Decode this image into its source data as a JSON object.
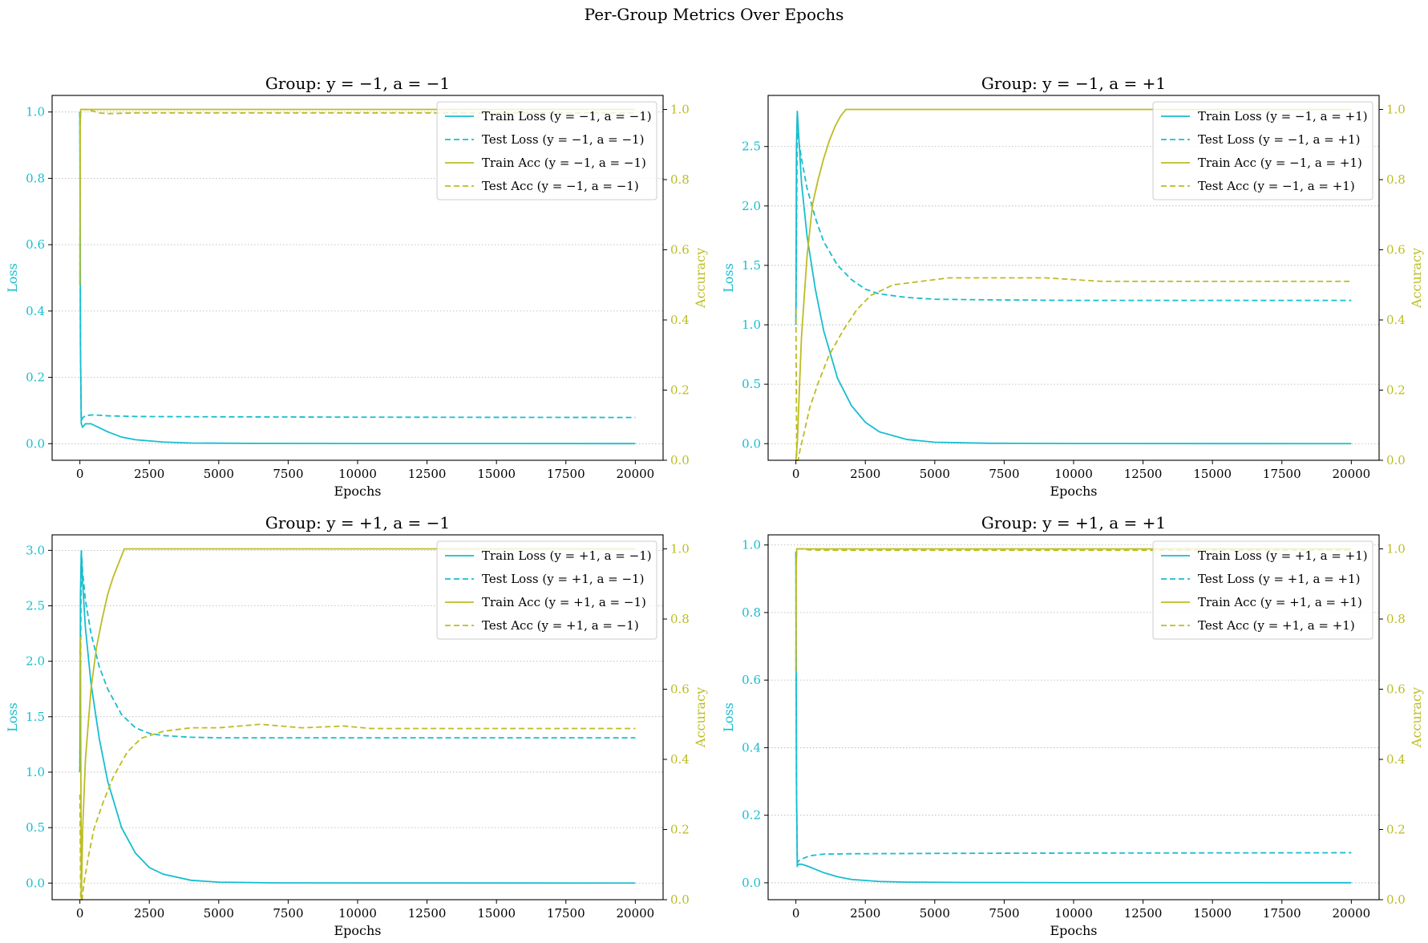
{
  "figure": {
    "title": "Per-Group Metrics Over Epochs"
  },
  "colors": {
    "loss": "#17becf",
    "acc": "#bcbd22",
    "grid": "#b0b0b0",
    "axis": "#000000"
  },
  "chart_data": [
    {
      "type": "line",
      "title": "Group: y = −1, a = −1",
      "xlabel": "Epochs",
      "ylabel_left": "Loss",
      "ylabel_right": "Accuracy",
      "xlim": [
        -1000,
        21000
      ],
      "ylim_left": [
        -0.05,
        1.05
      ],
      "ylim_right": [
        0,
        1.04
      ],
      "xticks": [
        0,
        2500,
        5000,
        7500,
        10000,
        12500,
        15000,
        17500,
        20000
      ],
      "yticks_left": [
        0.0,
        0.2,
        0.4,
        0.6,
        0.8,
        1.0
      ],
      "yticks_right": [
        0.0,
        0.2,
        0.4,
        0.6,
        0.8,
        1.0
      ],
      "grid": true,
      "legend_position": "top-right",
      "series": [
        {
          "name": "Train Loss (y = −1, a = −1)",
          "axis": "left",
          "style": "solid",
          "color": "#17becf",
          "x": [
            0,
            20,
            50,
            100,
            200,
            400,
            700,
            1000,
            1500,
            2000,
            3000,
            4000,
            6000,
            10000,
            20000
          ],
          "y": [
            1.0,
            0.3,
            0.06,
            0.05,
            0.06,
            0.06,
            0.048,
            0.036,
            0.02,
            0.012,
            0.005,
            0.002,
            0.001,
            0.0005,
            0.0003
          ]
        },
        {
          "name": "Test Loss (y = −1, a = −1)",
          "axis": "left",
          "style": "dashed",
          "color": "#17becf",
          "x": [
            0,
            20,
            50,
            100,
            200,
            500,
            1000,
            2000,
            5000,
            10000,
            20000
          ],
          "y": [
            1.0,
            0.3,
            0.07,
            0.078,
            0.085,
            0.087,
            0.084,
            0.082,
            0.081,
            0.08,
            0.079
          ]
        },
        {
          "name": "Train Acc (y = −1, a = −1)",
          "axis": "right",
          "style": "solid",
          "color": "#bcbd22",
          "x": [
            0,
            10,
            30,
            100,
            20000
          ],
          "y": [
            0.5,
            0.95,
            1.0,
            1.0,
            1.0
          ]
        },
        {
          "name": "Test Acc (y = −1, a = −1)",
          "axis": "right",
          "style": "dashed",
          "color": "#bcbd22",
          "x": [
            0,
            10,
            30,
            200,
            400,
            700,
            1000,
            2000,
            5000,
            20000
          ],
          "y": [
            0.5,
            0.95,
            1.0,
            1.0,
            0.997,
            0.99,
            0.988,
            0.99,
            0.99,
            0.99
          ]
        }
      ]
    },
    {
      "type": "line",
      "title": "Group: y = −1, a = +1",
      "xlabel": "Epochs",
      "ylabel_left": "Loss",
      "ylabel_right": "Accuracy",
      "xlim": [
        -1000,
        21000
      ],
      "ylim_left": [
        -0.14,
        2.93
      ],
      "ylim_right": [
        0,
        1.04
      ],
      "xticks": [
        0,
        2500,
        5000,
        7500,
        10000,
        12500,
        15000,
        17500,
        20000
      ],
      "yticks_left": [
        0.0,
        0.5,
        1.0,
        1.5,
        2.0,
        2.5
      ],
      "yticks_right": [
        0.0,
        0.2,
        0.4,
        0.6,
        0.8,
        1.0
      ],
      "grid": true,
      "legend_position": "top-right",
      "series": [
        {
          "name": "Train Loss (y = −1, a = +1)",
          "axis": "left",
          "style": "solid",
          "color": "#17becf",
          "x": [
            0,
            20,
            50,
            100,
            200,
            400,
            700,
            1000,
            1500,
            2000,
            2500,
            3000,
            4000,
            5000,
            7000,
            10000,
            20000
          ],
          "y": [
            1.0,
            2.5,
            2.8,
            2.6,
            2.2,
            1.75,
            1.3,
            0.95,
            0.55,
            0.32,
            0.18,
            0.1,
            0.035,
            0.012,
            0.003,
            0.001,
            0.0
          ]
        },
        {
          "name": "Test Loss (y = −1, a = +1)",
          "axis": "left",
          "style": "dashed",
          "color": "#17becf",
          "x": [
            0,
            50,
            100,
            200,
            400,
            700,
            1000,
            1500,
            2000,
            2500,
            3000,
            4000,
            5000,
            7000,
            10000,
            20000
          ],
          "y": [
            1.0,
            2.7,
            2.55,
            2.4,
            2.15,
            1.9,
            1.7,
            1.5,
            1.38,
            1.3,
            1.26,
            1.23,
            1.215,
            1.21,
            1.205,
            1.205
          ]
        },
        {
          "name": "Train Acc (y = −1, a = +1)",
          "axis": "right",
          "style": "solid",
          "color": "#bcbd22",
          "x": [
            0,
            50,
            100,
            200,
            400,
            600,
            800,
            1000,
            1200,
            1400,
            1600,
            1800,
            20000
          ],
          "y": [
            0.0,
            0.05,
            0.15,
            0.35,
            0.58,
            0.73,
            0.8,
            0.86,
            0.91,
            0.95,
            0.98,
            1.0,
            1.0
          ]
        },
        {
          "name": "Test Acc (y = −1, a = +1)",
          "axis": "right",
          "style": "dashed",
          "color": "#bcbd22",
          "x": [
            0,
            30,
            80,
            150,
            300,
            500,
            800,
            1200,
            1700,
            2200,
            2700,
            3500,
            4500,
            5500,
            7000,
            9000,
            11000,
            20000
          ],
          "y": [
            0.43,
            0.0,
            0.0,
            0.03,
            0.08,
            0.15,
            0.22,
            0.3,
            0.37,
            0.43,
            0.47,
            0.5,
            0.51,
            0.52,
            0.52,
            0.52,
            0.51,
            0.51
          ]
        }
      ]
    },
    {
      "type": "line",
      "title": "Group: y = +1, a = −1",
      "xlabel": "Epochs",
      "ylabel_left": "Loss",
      "ylabel_right": "Accuracy",
      "xlim": [
        -1000,
        21000
      ],
      "ylim_left": [
        -0.15,
        3.14
      ],
      "ylim_right": [
        0,
        1.04
      ],
      "xticks": [
        0,
        2500,
        5000,
        7500,
        10000,
        12500,
        15000,
        17500,
        20000
      ],
      "yticks_left": [
        0.0,
        0.5,
        1.0,
        1.5,
        2.0,
        2.5,
        3.0
      ],
      "yticks_right": [
        0.0,
        0.2,
        0.4,
        0.6,
        0.8,
        1.0
      ],
      "grid": true,
      "legend_position": "top-right",
      "series": [
        {
          "name": "Train Loss (y = +1, a = −1)",
          "axis": "left",
          "style": "solid",
          "color": "#17becf",
          "x": [
            0,
            20,
            50,
            100,
            200,
            400,
            700,
            1000,
            1500,
            2000,
            2500,
            3000,
            4000,
            5000,
            7000,
            10000,
            20000
          ],
          "y": [
            1.0,
            2.6,
            3.0,
            2.7,
            2.3,
            1.8,
            1.3,
            0.92,
            0.5,
            0.27,
            0.14,
            0.08,
            0.025,
            0.008,
            0.002,
            0.001,
            0.0
          ]
        },
        {
          "name": "Test Loss (y = +1, a = −1)",
          "axis": "left",
          "style": "dashed",
          "color": "#17becf",
          "x": [
            0,
            50,
            100,
            200,
            400,
            700,
            1000,
            1500,
            2000,
            2500,
            3000,
            4000,
            5000,
            7000,
            10000,
            20000
          ],
          "y": [
            1.0,
            3.0,
            2.8,
            2.55,
            2.25,
            1.95,
            1.75,
            1.52,
            1.4,
            1.35,
            1.33,
            1.315,
            1.31,
            1.31,
            1.31,
            1.31
          ]
        },
        {
          "name": "Train Acc (y = +1, a = −1)",
          "axis": "right",
          "style": "solid",
          "color": "#bcbd22",
          "x": [
            0,
            20,
            50,
            100,
            200,
            400,
            600,
            800,
            1000,
            1200,
            1400,
            1600,
            20000
          ],
          "y": [
            0.7,
            0.75,
            0.0,
            0.2,
            0.4,
            0.6,
            0.72,
            0.8,
            0.87,
            0.92,
            0.96,
            1.0,
            1.0
          ]
        },
        {
          "name": "Test Acc (y = +1, a = −1)",
          "axis": "right",
          "style": "dashed",
          "color": "#bcbd22",
          "x": [
            0,
            30,
            80,
            150,
            300,
            500,
            800,
            1200,
            1700,
            2200,
            3000,
            4000,
            5000,
            6500,
            8000,
            9500,
            10500,
            12000,
            20000
          ],
          "y": [
            0.3,
            0.0,
            0.0,
            0.05,
            0.12,
            0.2,
            0.27,
            0.35,
            0.42,
            0.46,
            0.48,
            0.49,
            0.49,
            0.5,
            0.49,
            0.495,
            0.488,
            0.488,
            0.488
          ]
        }
      ]
    },
    {
      "type": "line",
      "title": "Group: y = +1, a = +1",
      "xlabel": "Epochs",
      "ylabel_left": "Loss",
      "ylabel_right": "Accuracy",
      "xlim": [
        -1000,
        21000
      ],
      "ylim_left": [
        -0.05,
        1.03
      ],
      "ylim_right": [
        0,
        1.04
      ],
      "xticks": [
        0,
        2500,
        5000,
        7500,
        10000,
        12500,
        15000,
        17500,
        20000
      ],
      "yticks_left": [
        0.0,
        0.2,
        0.4,
        0.6,
        0.8,
        1.0
      ],
      "yticks_right": [
        0.0,
        0.2,
        0.4,
        0.6,
        0.8,
        1.0
      ],
      "grid": true,
      "legend_position": "top-right",
      "series": [
        {
          "name": "Train Loss (y = +1, a = +1)",
          "axis": "left",
          "style": "solid",
          "color": "#17becf",
          "x": [
            0,
            20,
            50,
            100,
            200,
            400,
            700,
            1000,
            1500,
            2000,
            3000,
            4000,
            6000,
            10000,
            20000
          ],
          "y": [
            0.98,
            0.3,
            0.05,
            0.055,
            0.055,
            0.05,
            0.04,
            0.03,
            0.018,
            0.01,
            0.004,
            0.002,
            0.001,
            0.0005,
            0.0003
          ]
        },
        {
          "name": "Test Loss (y = +1, a = +1)",
          "axis": "left",
          "style": "dashed",
          "color": "#17becf",
          "x": [
            0,
            20,
            50,
            100,
            200,
            500,
            1000,
            2000,
            5000,
            10000,
            20000
          ],
          "y": [
            0.98,
            0.3,
            0.06,
            0.065,
            0.07,
            0.08,
            0.085,
            0.086,
            0.087,
            0.088,
            0.089
          ]
        },
        {
          "name": "Train Acc (y = +1, a = +1)",
          "axis": "right",
          "style": "solid",
          "color": "#bcbd22",
          "x": [
            0,
            10,
            30,
            100,
            20000
          ],
          "y": [
            0.65,
            0.95,
            1.0,
            1.0,
            1.0
          ]
        },
        {
          "name": "Test Acc (y = +1, a = +1)",
          "axis": "right",
          "style": "dashed",
          "color": "#bcbd22",
          "x": [
            0,
            10,
            30,
            200,
            500,
            1000,
            5000,
            20000
          ],
          "y": [
            0.65,
            0.95,
            1.0,
            1.0,
            0.997,
            0.996,
            0.996,
            0.996
          ]
        }
      ]
    }
  ]
}
